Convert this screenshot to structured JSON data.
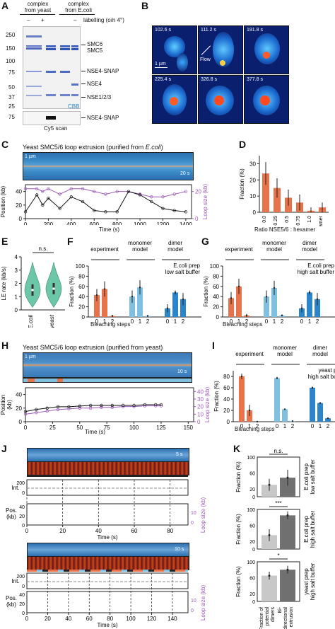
{
  "panels": {
    "A": {
      "letter": "A",
      "header_yeast": "complex\nfrom yeast",
      "header_ecoli": "complex\nfrom E.coli",
      "labelling_label": "labelling (o/n 4°)",
      "lane_minus": "–",
      "lane_plus": "+",
      "lane_minus2": "–",
      "mw_markers": [
        "250",
        "150",
        "100",
        "75",
        "50",
        "37",
        "25"
      ],
      "band_labels": [
        "SMC6",
        "SMC5",
        "NSE4-SNAP",
        "NSE4",
        "NSE1/2/3"
      ],
      "cbb": "CBB",
      "cy5_mw": "75",
      "cy5_scan": "Cy5 scan",
      "cy5_label": "NSE4-SNAP"
    },
    "B": {
      "letter": "B",
      "times": [
        "102.6 s",
        "111.2 s",
        "191.8 s",
        "225.4 s",
        "326.8 s",
        "377.8 s"
      ],
      "scalebar": "1 µm",
      "flow": "Flow"
    },
    "C": {
      "letter": "C",
      "title": "Yeast SMC5/6 loop extrusion (purified from ",
      "title_em": "E.coli",
      "title_end": ")",
      "kymo_scale_a": "1 µm",
      "kymo_scale_b": "20 s",
      "ylabel_left": "Position (kb)",
      "ylabel_right": "Loop size (kb)",
      "xlabel": "Time (s)",
      "y_ticks_left": [
        "0",
        "20",
        "40"
      ],
      "y_ticks_right": [
        "0",
        "20"
      ],
      "x_ticks": [
        "0",
        "200",
        "400",
        "600",
        "800",
        "1000",
        "1200",
        "1400"
      ]
    },
    "D": {
      "letter": "D",
      "ylabel": "Fraction (%)",
      "xlabel": "Ratio NSE5/6 : hexamer",
      "y_ticks": [
        "0",
        "10",
        "20",
        "30"
      ]
    },
    "E": {
      "letter": "E",
      "ylabel": "LE rate (kb/s)",
      "sig": "n.s.",
      "y_ticks": [
        "0",
        "1",
        "2",
        "3",
        "4"
      ],
      "cats": [
        "E.coli",
        "yeast"
      ]
    },
    "F": {
      "letter": "F",
      "groups": [
        "experiment",
        "monomer\nmodel",
        "dimer\nmodel"
      ],
      "note": "E.coli prep\nlow salt buffer",
      "ylabel": "Fraction (%)",
      "xlabel": "Bleaching steps",
      "y_ticks": [
        "0",
        "20",
        "40",
        "60",
        "80",
        "100"
      ],
      "steps": [
        "0",
        "1",
        "2"
      ]
    },
    "G": {
      "letter": "G",
      "groups": [
        "experiment",
        "monomer\nmodel",
        "dimer\nmodel"
      ],
      "note": "E.coli prep\nhigh salt buffer",
      "ylabel": "Fraction (%)",
      "xlabel": "Bleaching steps",
      "y_ticks": [
        "0",
        "20",
        "40",
        "60",
        "80",
        "100"
      ],
      "steps": [
        "0",
        "1",
        "2"
      ]
    },
    "H": {
      "letter": "H",
      "title": "Yeast SMC5/6 loop extrusion (purified from yeast)",
      "kymo_scale_a": "1 µm",
      "kymo_scale_b": "10 s",
      "ylabel_left": "Position\n(kb)",
      "ylabel_right": "Loop size (kb)",
      "xlabel": "Time (s)",
      "y_ticks_left": [
        "0",
        "20",
        "40"
      ],
      "y_ticks_right": [
        "0",
        "10",
        "20",
        "30",
        "40"
      ],
      "x_ticks": [
        "0",
        "25",
        "50",
        "75",
        "100",
        "125",
        "150"
      ]
    },
    "I": {
      "letter": "I",
      "groups": [
        "experiment",
        "monomer\nmodel",
        "dimer\nmodel"
      ],
      "note": "yeast prep\nhigh salt buffer",
      "ylabel": "Fraction (%)",
      "xlabel": "Bleaching steps",
      "y_ticks": [
        "0",
        "20",
        "40",
        "60",
        "80"
      ],
      "steps": [
        "0",
        "1",
        "2"
      ]
    },
    "J": {
      "letter": "J",
      "int_label": "Int.",
      "pos_label": "Pos.\n(kb)",
      "ylabel_right": "Loop size (kb)",
      "xlabel": "Time (s)",
      "top_scale": "5 s",
      "bottom_scale": "10 s",
      "top_x_ticks": [
        "0",
        "20",
        "40",
        "60",
        "80"
      ],
      "bottom_x_ticks": [
        "0",
        "20",
        "40",
        "60",
        "80",
        "100",
        "120",
        "140"
      ],
      "int_ticks": [
        "0",
        "200"
      ],
      "pos_ticks": [
        "0",
        "20",
        "40"
      ],
      "loop_ticks": [
        "0",
        "10"
      ]
    },
    "K": {
      "letter": "K",
      "sigs": [
        "n.s.",
        "***",
        "*"
      ],
      "ylabel": "Fraction (%)",
      "y_ticks": [
        "0",
        "20",
        "40",
        "60",
        "80",
        "100"
      ],
      "side_notes": [
        "E.coli prep\nlow salt buffer",
        "E.coli prep\nhigh salt buffer",
        "yeast prep\nhigh salt buffer"
      ],
      "cats": [
        "Fraction of\npotential\ndimers",
        "Bi-\ndirectional\nextrusion"
      ]
    }
  },
  "colors": {
    "orange": "#e8734a",
    "light_blue": "#7fbfe0",
    "blue": "#2b85c8",
    "purple": "#9b59b6",
    "teal": "#6cc7a8",
    "gray_light": "#c8c8c8",
    "gray_dark": "#707070"
  },
  "chart_data": [
    {
      "panel": "D",
      "type": "bar",
      "categories": [
        "0.0",
        "0.25",
        "0.5",
        "0.75",
        "1.0",
        "octamer"
      ],
      "values": [
        24,
        15,
        9,
        6,
        1,
        3
      ],
      "errors": [
        7,
        6,
        5,
        5,
        2,
        3
      ],
      "ylabel": "Fraction (%)",
      "xlabel": "Ratio NSE5/6 : hexamer",
      "ylim": [
        0,
        35
      ]
    },
    {
      "panel": "F",
      "type": "bar",
      "categories": [
        "0",
        "1",
        "2"
      ],
      "series": [
        {
          "name": "experiment",
          "values": [
            43,
            55,
            2
          ],
          "errors": [
            12,
            15,
            2
          ]
        },
        {
          "name": "monomer model",
          "values": [
            40,
            58,
            2
          ],
          "errors": [
            12,
            14,
            2
          ]
        },
        {
          "name": "dimer model",
          "values": [
            17,
            48,
            35
          ],
          "errors": [
            8,
            4,
            12
          ]
        }
      ],
      "ylabel": "Fraction (%)",
      "xlabel": "Bleaching steps",
      "ylim": [
        0,
        100
      ]
    },
    {
      "panel": "G",
      "type": "bar",
      "categories": [
        "0",
        "1",
        "2"
      ],
      "series": [
        {
          "name": "experiment",
          "values": [
            37,
            60,
            3
          ],
          "errors": [
            12,
            15,
            3
          ]
        },
        {
          "name": "monomer model",
          "values": [
            40,
            57,
            3
          ],
          "errors": [
            12,
            14,
            2
          ]
        },
        {
          "name": "dimer model",
          "values": [
            17,
            48,
            35
          ],
          "errors": [
            8,
            4,
            12
          ]
        }
      ],
      "ylabel": "Fraction (%)",
      "xlabel": "Bleaching steps",
      "ylim": [
        0,
        100
      ]
    },
    {
      "panel": "I",
      "type": "bar",
      "categories": [
        "0",
        "1",
        "2"
      ],
      "series": [
        {
          "name": "experiment",
          "values": [
            80,
            20,
            0
          ],
          "errors": [
            5,
            10,
            1
          ]
        },
        {
          "name": "monomer model",
          "values": [
            77,
            22,
            1
          ],
          "errors": [
            2,
            1,
            0
          ]
        },
        {
          "name": "dimer model",
          "values": [
            60,
            33,
            6
          ],
          "errors": [
            2,
            1,
            1
          ]
        }
      ],
      "ylabel": "Fraction (%)",
      "xlabel": "Bleaching steps",
      "ylim": [
        0,
        90
      ]
    },
    {
      "panel": "K",
      "type": "bar",
      "categories": [
        "Fraction of potential dimers",
        "Bi-directional extrusion"
      ],
      "series": [
        {
          "name": "E.coli prep low salt buffer",
          "values": [
            30,
            48
          ],
          "errors": [
            15,
            20
          ]
        },
        {
          "name": "E.coli prep high salt buffer",
          "values": [
            35,
            85
          ],
          "errors": [
            15,
            10
          ]
        },
        {
          "name": "yeast prep high salt buffer",
          "values": [
            65,
            80
          ],
          "errors": [
            10,
            10
          ]
        }
      ],
      "ylabel": "Fraction (%)",
      "ylim": [
        0,
        100
      ]
    },
    {
      "panel": "E",
      "type": "scatter",
      "categories": [
        "E.coli",
        "yeast"
      ],
      "medians": [
        1.5,
        1.6
      ],
      "ylabel": "LE rate (kb/s)",
      "ylim": [
        0,
        4
      ]
    },
    {
      "panel": "C",
      "type": "line",
      "x": [
        0,
        100,
        150,
        200,
        300,
        400,
        500,
        600,
        700,
        800,
        900,
        1000,
        1100,
        1200,
        1300,
        1400
      ],
      "series": [
        {
          "name": "position",
          "values": [
            10,
            35,
            20,
            30,
            15,
            32,
            25,
            12,
            10,
            10,
            40,
            35,
            25,
            15,
            12,
            10
          ]
        },
        {
          "name": "loop size",
          "values": [
            22,
            22,
            20,
            22,
            18,
            22,
            22,
            20,
            18,
            20,
            20,
            18,
            16,
            16,
            18,
            20
          ]
        }
      ],
      "xlabel": "Time (s)",
      "xlim": [
        0,
        1450
      ]
    },
    {
      "panel": "H",
      "type": "line",
      "x": [
        0,
        10,
        20,
        30,
        40,
        50,
        60,
        70,
        80,
        90,
        100,
        110,
        120,
        125
      ],
      "series": [
        {
          "name": "position",
          "values": [
            15,
            18,
            20,
            22,
            22,
            23,
            24,
            24,
            24,
            24,
            24,
            25,
            25,
            25
          ]
        },
        {
          "name": "loop size",
          "values": [
            10,
            12,
            14,
            16,
            17,
            18,
            18,
            19,
            19,
            20,
            20,
            21,
            21,
            21
          ]
        }
      ],
      "xlabel": "Time (s)",
      "xlim": [
        0,
        155
      ]
    }
  ]
}
